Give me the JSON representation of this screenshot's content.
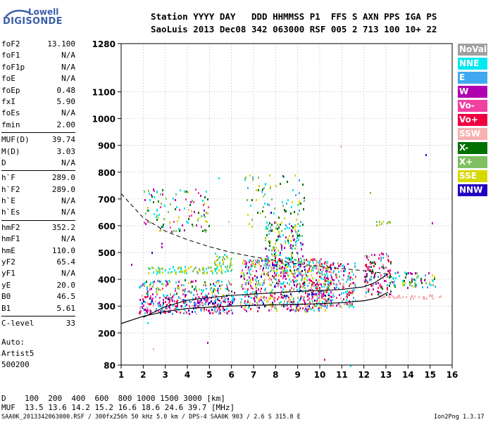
{
  "logo": {
    "line1": "Lowell",
    "line2": "DIGISONDE"
  },
  "header": {
    "line1": "Station YYYY DAY   DDD HHMMSS P1  FFS S AXN PPS IGA PS",
    "line2": "SaoLuis 2013 Dec08 342 063000 RSF 005 2 713 100 10+ 22"
  },
  "params": [
    {
      "k": "foF2",
      "v": "13.100"
    },
    {
      "k": "foF1",
      "v": "N/A"
    },
    {
      "k": "foF1p",
      "v": "N/A"
    },
    {
      "k": "foE",
      "v": "N/A"
    },
    {
      "k": "foEp",
      "v": "0.48"
    },
    {
      "k": "fxI",
      "v": "5.90"
    },
    {
      "k": "foEs",
      "v": "N/A"
    },
    {
      "k": "fmin",
      "v": "2.00"
    },
    {
      "k": "MUF(D)",
      "v": "39.74",
      "sep_before": true
    },
    {
      "k": "M(D)",
      "v": "3.03"
    },
    {
      "k": "D",
      "v": "N/A"
    },
    {
      "k": "h`F",
      "v": "289.0",
      "sep_before": true
    },
    {
      "k": "h`F2",
      "v": "289.0"
    },
    {
      "k": "h`E",
      "v": "N/A"
    },
    {
      "k": "h`Es",
      "v": "N/A"
    },
    {
      "k": "hmF2",
      "v": "352.2",
      "sep_before": true
    },
    {
      "k": "hmF1",
      "v": "N/A"
    },
    {
      "k": "hmE",
      "v": "110.0"
    },
    {
      "k": "yF2",
      "v": "65.4"
    },
    {
      "k": "yF1",
      "v": "N/A"
    },
    {
      "k": "yE",
      "v": "20.0"
    },
    {
      "k": "B0",
      "v": "46.5"
    },
    {
      "k": "B1",
      "v": "5.61"
    },
    {
      "k": "C-level",
      "v": "33",
      "sep_before": true
    }
  ],
  "auto": {
    "l1": "Auto:",
    "l2": "Artist5",
    "l3": "500200"
  },
  "bottom": {
    "d_line": "D    100  200  400  600  800 1000 1500 3000 [km]",
    "muf_line": "MUF  13.5 13.6 14.2 15.2 16.6 18.6 24.6 39.7 [MHz]"
  },
  "footer": {
    "left": "SAA0K_2013342063000.RSF / 300fx256h 50 kHz 5.0 km / DPS-4 SAA0K 903 / 2.6 S 315.8 E",
    "right": "Ion2Png 1.3.17"
  },
  "legend": [
    {
      "label": "NoVal",
      "color": "#a0a0a0"
    },
    {
      "label": "NNE",
      "color": "#00e8f0"
    },
    {
      "label": "E",
      "color": "#40a8f0"
    },
    {
      "label": "W",
      "color": "#b000b0"
    },
    {
      "label": "Vo-",
      "color": "#f040a0"
    },
    {
      "label": "Vo+",
      "color": "#f00040"
    },
    {
      "label": "SSW",
      "color": "#f8b0b0"
    },
    {
      "label": "X-",
      "color": "#007000"
    },
    {
      "label": "X+",
      "color": "#80c060"
    },
    {
      "label": "SSE",
      "color": "#d8d800"
    },
    {
      "label": "NNW",
      "color": "#2000c0"
    }
  ],
  "chart_data": {
    "type": "scatter",
    "xlim": [
      1,
      16
    ],
    "ylim": [
      80,
      1280
    ],
    "x_ticks": [
      1,
      2,
      3,
      4,
      5,
      6,
      7,
      8,
      9,
      10,
      11,
      12,
      13,
      14,
      15,
      16
    ],
    "y_ticks": [
      80,
      200,
      300,
      400,
      500,
      600,
      700,
      800,
      900,
      1000,
      1100,
      1280
    ],
    "grid": "dotted",
    "profile_curve": [
      [
        1,
        235
      ],
      [
        2,
        262
      ],
      [
        3,
        280
      ],
      [
        4,
        291
      ],
      [
        5,
        296
      ],
      [
        6,
        300
      ],
      [
        7,
        303
      ],
      [
        8,
        305
      ],
      [
        9,
        307
      ],
      [
        10,
        309
      ],
      [
        11,
        313
      ],
      [
        12,
        320
      ],
      [
        12.6,
        330
      ],
      [
        13.1,
        352
      ]
    ],
    "trace_curve": [
      [
        2,
        258
      ],
      [
        3,
        298
      ],
      [
        4,
        322
      ],
      [
        5,
        332
      ],
      [
        6,
        340
      ],
      [
        7,
        345
      ],
      [
        8,
        350
      ],
      [
        9,
        355
      ],
      [
        10,
        358
      ],
      [
        11,
        362
      ],
      [
        12,
        372
      ],
      [
        12.5,
        388
      ],
      [
        13.1,
        420
      ]
    ],
    "dashed_curve": [
      [
        1,
        720
      ],
      [
        2,
        630
      ],
      [
        3,
        580
      ],
      [
        4,
        548
      ],
      [
        5,
        522
      ],
      [
        6,
        500
      ],
      [
        7,
        484
      ],
      [
        8,
        470
      ],
      [
        9,
        458
      ],
      [
        10,
        448
      ],
      [
        11,
        440
      ],
      [
        12,
        432
      ],
      [
        13.1,
        420
      ]
    ],
    "echo_bands": [
      {
        "x": [
          1.8,
          6.1
        ],
        "y": [
          275,
          345
        ],
        "density": 0.55,
        "colors": [
          5,
          4,
          3,
          6,
          2,
          1,
          10
        ]
      },
      {
        "x": [
          1.8,
          6.1
        ],
        "y": [
          345,
          400
        ],
        "density": 0.3,
        "colors": [
          1,
          2,
          7,
          8,
          9,
          3,
          4
        ]
      },
      {
        "x": [
          2.2,
          6.0
        ],
        "y": [
          425,
          450
        ],
        "density": 0.5,
        "colors": [
          9,
          8,
          1
        ]
      },
      {
        "x": [
          5.2,
          6.0
        ],
        "y": [
          450,
          500
        ],
        "density": 0.4,
        "colors": [
          9,
          8,
          1
        ]
      },
      {
        "x": [
          6.4,
          10.5
        ],
        "y": [
          285,
          480
        ],
        "density": 0.45,
        "colors": [
          5,
          4,
          3,
          6,
          2,
          1,
          10,
          9,
          8
        ]
      },
      {
        "x": [
          7.5,
          9.2
        ],
        "y": [
          420,
          620
        ],
        "density": 0.28,
        "colors": [
          1,
          2,
          9,
          8,
          7,
          3
        ]
      },
      {
        "x": [
          9.8,
          11.6
        ],
        "y": [
          300,
          470
        ],
        "density": 0.35,
        "colors": [
          5,
          4,
          3,
          6,
          2,
          1,
          8
        ]
      },
      {
        "x": [
          12.0,
          13.2
        ],
        "y": [
          340,
          500
        ],
        "density": 0.35,
        "colors": [
          5,
          4,
          3,
          6,
          2,
          7
        ]
      },
      {
        "x": [
          13.2,
          15.2
        ],
        "y": [
          370,
          430
        ],
        "density": 0.3,
        "colors": [
          1,
          2,
          8,
          9,
          7,
          3
        ]
      },
      {
        "x": [
          2.0,
          5.0
        ],
        "y": [
          580,
          740
        ],
        "density": 0.12,
        "colors": [
          4,
          8,
          9,
          3,
          1,
          7
        ]
      },
      {
        "x": [
          6.5,
          9.3
        ],
        "y": [
          580,
          800
        ],
        "density": 0.07,
        "colors": [
          9,
          8,
          1,
          2,
          7
        ]
      },
      {
        "x": [
          12.5,
          13.2
        ],
        "y": [
          605,
          620
        ],
        "density": 0.5,
        "colors": [
          9,
          8
        ]
      },
      {
        "x": [
          12.4,
          15.5
        ],
        "y": [
          330,
          345
        ],
        "density": 0.4,
        "colors": [
          6
        ]
      },
      {
        "x": [
          1.0,
          16.0
        ],
        "y": [
          80,
          1280
        ],
        "density": 0.0006,
        "colors": [
          5,
          4,
          3,
          6,
          2,
          1,
          10,
          9,
          8
        ]
      }
    ]
  }
}
